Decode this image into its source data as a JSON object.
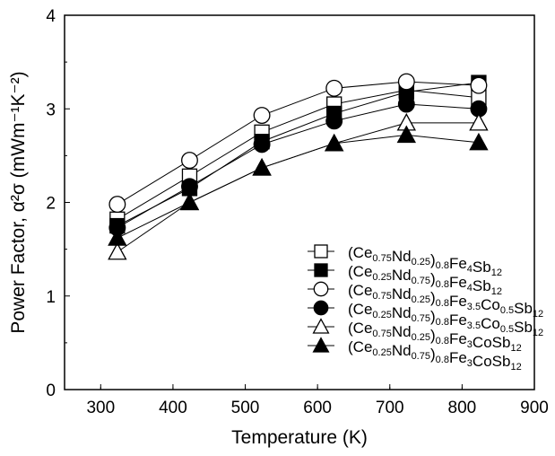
{
  "chart_data": {
    "type": "line",
    "xlabel": "Temperature  (K)",
    "ylabel": "Power Factor, α²σ (mWm⁻¹K⁻²)",
    "xlim": [
      250,
      900
    ],
    "ylim": [
      0,
      4
    ],
    "xticks": [
      300,
      400,
      500,
      600,
      700,
      800,
      900
    ],
    "yticks": [
      0,
      1,
      2,
      3,
      4
    ],
    "grid": false,
    "legend_position": "bottom-right",
    "x": [
      323,
      423,
      523,
      623,
      723,
      823
    ],
    "series": [
      {
        "name": "(Ce0.75Nd0.25)0.8Fe4Sb12",
        "label_parts": [
          [
            "(Ce",
            ""
          ],
          [
            "0.75",
            "sub"
          ],
          [
            "Nd",
            ""
          ],
          [
            "0.25",
            "sub"
          ],
          [
            ")",
            ""
          ],
          [
            "0.8",
            "sub"
          ],
          [
            "Fe",
            ""
          ],
          [
            "4",
            "sub"
          ],
          [
            "Sb",
            ""
          ],
          [
            "12",
            "sub"
          ]
        ],
        "marker": "square",
        "filled": false,
        "values": [
          1.82,
          2.28,
          2.75,
          3.05,
          3.2,
          3.12
        ]
      },
      {
        "name": "(Ce0.25Nd0.75)0.8Fe4Sb12",
        "label_parts": [
          [
            "(Ce",
            ""
          ],
          [
            "0.25",
            "sub"
          ],
          [
            "Nd",
            ""
          ],
          [
            "0.75",
            "sub"
          ],
          [
            ")",
            ""
          ],
          [
            "0.8",
            "sub"
          ],
          [
            "Fe",
            ""
          ],
          [
            "4",
            "sub"
          ],
          [
            "Sb",
            ""
          ],
          [
            "12",
            "sub"
          ]
        ],
        "marker": "square",
        "filled": true,
        "values": [
          1.75,
          2.15,
          2.65,
          2.95,
          3.18,
          3.28
        ]
      },
      {
        "name": "(Ce0.75Nd0.25)0.8Fe3.5Co0.5Sb12",
        "label_parts": [
          [
            "(Ce",
            ""
          ],
          [
            "0.75",
            "sub"
          ],
          [
            "Nd",
            ""
          ],
          [
            "0.25",
            "sub"
          ],
          [
            ")",
            ""
          ],
          [
            "0.8",
            "sub"
          ],
          [
            "Fe",
            ""
          ],
          [
            "3.5",
            "sub"
          ],
          [
            "Co",
            ""
          ],
          [
            "0.5",
            "sub"
          ],
          [
            "Sb",
            ""
          ],
          [
            "12",
            "sub"
          ]
        ],
        "marker": "circle",
        "filled": false,
        "values": [
          1.98,
          2.45,
          2.93,
          3.22,
          3.29,
          3.25
        ]
      },
      {
        "name": "(Ce0.25Nd0.75)0.8Fe3.5Co0.5Sb12",
        "label_parts": [
          [
            "(Ce",
            ""
          ],
          [
            "0.25",
            "sub"
          ],
          [
            "Nd",
            ""
          ],
          [
            "0.75",
            "sub"
          ],
          [
            ")",
            ""
          ],
          [
            "0.8",
            "sub"
          ],
          [
            "Fe",
            ""
          ],
          [
            "3.5",
            "sub"
          ],
          [
            "Co",
            ""
          ],
          [
            "0.5",
            "sub"
          ],
          [
            "Sb",
            ""
          ],
          [
            "12",
            "sub"
          ]
        ],
        "marker": "circle",
        "filled": true,
        "values": [
          1.73,
          2.17,
          2.62,
          2.87,
          3.05,
          3.0
        ]
      },
      {
        "name": "(Ce0.75Nd0.25)0.8Fe3CoSb12",
        "label_parts": [
          [
            "(Ce",
            ""
          ],
          [
            "0.75",
            "sub"
          ],
          [
            "Nd",
            ""
          ],
          [
            "0.25",
            "sub"
          ],
          [
            ")",
            ""
          ],
          [
            "0.8",
            "sub"
          ],
          [
            "Fe",
            ""
          ],
          [
            "3",
            "sub"
          ],
          [
            "CoSb",
            ""
          ],
          [
            "12",
            "sub"
          ]
        ],
        "marker": "triangle",
        "filled": false,
        "values": [
          1.47,
          2.0,
          2.37,
          2.63,
          2.85,
          2.85
        ]
      },
      {
        "name": "(Ce0.25Nd0.75)0.8Fe3CoSb12",
        "label_parts": [
          [
            "(Ce",
            ""
          ],
          [
            "0.25",
            "sub"
          ],
          [
            "Nd",
            ""
          ],
          [
            "0.75",
            "sub"
          ],
          [
            ")",
            ""
          ],
          [
            "0.8",
            "sub"
          ],
          [
            "Fe",
            ""
          ],
          [
            "3",
            "sub"
          ],
          [
            "CoSb",
            ""
          ],
          [
            "12",
            "sub"
          ]
        ],
        "marker": "triangle",
        "filled": true,
        "values": [
          1.62,
          2.0,
          2.37,
          2.63,
          2.72,
          2.64
        ]
      }
    ]
  }
}
